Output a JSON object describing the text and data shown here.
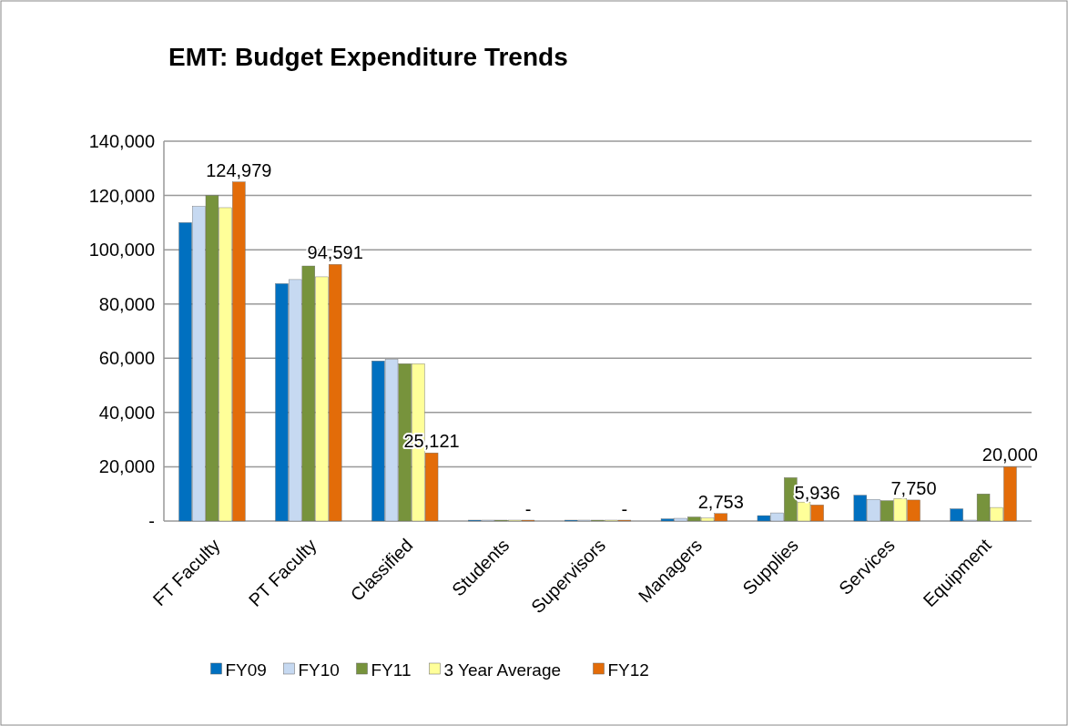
{
  "chart_data": {
    "type": "bar",
    "title": "EMT: Budget Expenditure Trends",
    "categories": [
      "FT Faculty",
      "PT Faculty",
      "Classified",
      "Students",
      "Supervisors",
      "Managers",
      "Supplies",
      "Services",
      "Equipment"
    ],
    "series": [
      {
        "name": "FY09",
        "color": "#0070c0",
        "values": [
          110000,
          87500,
          59000,
          300,
          300,
          800,
          2000,
          9500,
          4500
        ]
      },
      {
        "name": "FY10",
        "color": "#c6d9f1",
        "values": [
          116000,
          89000,
          59600,
          300,
          300,
          1000,
          3000,
          8000,
          300
        ]
      },
      {
        "name": "FY11",
        "color": "#77933c",
        "values": [
          120000,
          94000,
          58000,
          300,
          300,
          1500,
          16000,
          7500,
          10000
        ]
      },
      {
        "name": "3 Year Average",
        "color": "#ffff99",
        "values": [
          115500,
          90000,
          58000,
          300,
          300,
          1100,
          7000,
          8300,
          5000
        ]
      },
      {
        "name": "FY12",
        "color": "#e36c09",
        "values": [
          124979,
          94591,
          25121,
          0,
          0,
          2753,
          5936,
          7750,
          20000
        ],
        "value_labels": [
          "124,979",
          "94,591",
          "25,121",
          "-",
          "-",
          "2,753",
          "5,936",
          "7,750",
          "20,000"
        ]
      }
    ],
    "ylim": [
      0,
      140000
    ],
    "yticks": [
      {
        "value": 0,
        "label": "-"
      },
      {
        "value": 20000,
        "label": "20,000"
      },
      {
        "value": 40000,
        "label": "40,000"
      },
      {
        "value": 60000,
        "label": "60,000"
      },
      {
        "value": 80000,
        "label": "80,000"
      },
      {
        "value": 100000,
        "label": "100,000"
      },
      {
        "value": 120000,
        "label": "120,000"
      },
      {
        "value": 140000,
        "label": "140,000"
      }
    ],
    "grid": "y",
    "legend": "bottom"
  }
}
